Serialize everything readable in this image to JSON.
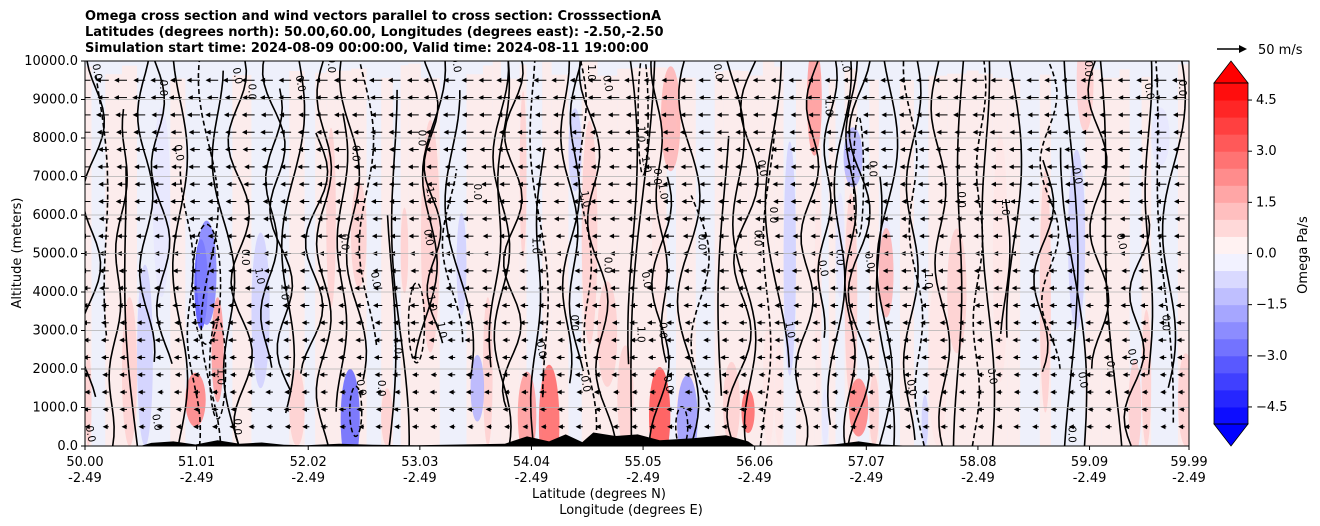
{
  "chart_data": {
    "type": "heatmap",
    "title_lines": [
      "Omega cross section and wind vectors parallel to cross section: CrosssectionA",
      "Latitudes (degrees north): 50.00,60.00, Longitudes (degrees east): -2.50,-2.50",
      "Simulation start time: 2024-08-09 00:00:00, Valid time: 2024-08-11 19:00:00"
    ],
    "ylabel": "Altitude (meters)",
    "xlabel_lat": "Latitude (degrees N)",
    "xlabel_lon": "Longitude (degrees E)",
    "ylim": [
      0,
      10000
    ],
    "xlim": [
      50.0,
      59.99
    ],
    "y_ticks": [
      0,
      1000,
      2000,
      3000,
      4000,
      5000,
      6000,
      7000,
      8000,
      9000,
      10000
    ],
    "y_tick_labels": [
      "0.0",
      "1000.0",
      "2000.0",
      "3000.0",
      "4000.0",
      "5000.0",
      "6000.0",
      "7000.0",
      "8000.0",
      "9000.0",
      "10000.0"
    ],
    "x_ticks": [
      {
        "lat": 50.0,
        "lat_label": "50.00",
        "lon_label": "-2.49"
      },
      {
        "lat": 51.01,
        "lat_label": "51.01",
        "lon_label": "-2.49"
      },
      {
        "lat": 52.02,
        "lat_label": "52.02",
        "lon_label": "-2.49"
      },
      {
        "lat": 53.03,
        "lat_label": "53.03",
        "lon_label": "-2.49"
      },
      {
        "lat": 54.04,
        "lat_label": "54.04",
        "lon_label": "-2.49"
      },
      {
        "lat": 55.05,
        "lat_label": "55.05",
        "lon_label": "-2.49"
      },
      {
        "lat": 56.06,
        "lat_label": "56.06",
        "lon_label": "-2.49"
      },
      {
        "lat": 57.07,
        "lat_label": "57.07",
        "lon_label": "-2.49"
      },
      {
        "lat": 58.08,
        "lat_label": "58.08",
        "lon_label": "-2.49"
      },
      {
        "lat": 59.09,
        "lat_label": "59.09",
        "lon_label": "-2.49"
      },
      {
        "lat": 59.99,
        "lat_label": "59.99",
        "lon_label": "-2.49"
      }
    ],
    "grid": "horizontal",
    "colorbar": {
      "label": "Omega Pa/s",
      "range": [
        -5,
        5
      ],
      "ticks": [
        -4.5,
        -3.0,
        -1.5,
        0.0,
        1.5,
        3.0,
        4.5
      ],
      "tick_labels": [
        "−4.5",
        "−3.0",
        "−1.5",
        "0.0",
        "1.5",
        "3.0",
        "4.5"
      ],
      "extend": "both",
      "cmap": "bwr"
    },
    "contour_levels": [
      -1.0,
      0.0,
      1.0
    ],
    "contour_labels": [
      {
        "lat": 50.08,
        "alt": 9700,
        "text": "0.0"
      },
      {
        "lat": 50.68,
        "alt": 9300,
        "text": "0.0"
      },
      {
        "lat": 51.35,
        "alt": 9600,
        "text": "0.0"
      },
      {
        "lat": 51.48,
        "alt": 9200,
        "text": "0.0"
      },
      {
        "lat": 51.92,
        "alt": 9400,
        "text": "0.0"
      },
      {
        "lat": 52.2,
        "alt": 9900,
        "text": "0.0"
      },
      {
        "lat": 50.82,
        "alt": 7600,
        "text": "0.0"
      },
      {
        "lat": 52.42,
        "alt": 7600,
        "text": "0.0"
      },
      {
        "lat": 53.33,
        "alt": 9900,
        "text": "0.0"
      },
      {
        "lat": 53.02,
        "alt": 8000,
        "text": "0.0"
      },
      {
        "lat": 53.1,
        "alt": 6500,
        "text": "1.0"
      },
      {
        "lat": 53.52,
        "alt": 6600,
        "text": "0.0"
      },
      {
        "lat": 53.08,
        "alt": 5400,
        "text": "0.0"
      },
      {
        "lat": 52.32,
        "alt": 5300,
        "text": "0.0"
      },
      {
        "lat": 52.6,
        "alt": 4300,
        "text": "0.0"
      },
      {
        "lat": 51.42,
        "alt": 4900,
        "text": "0.0"
      },
      {
        "lat": 51.55,
        "alt": 4400,
        "text": "1.0"
      },
      {
        "lat": 51.78,
        "alt": 4000,
        "text": "1.0"
      },
      {
        "lat": 53.11,
        "alt": 3700,
        "text": "1.0"
      },
      {
        "lat": 52.8,
        "alt": 2600,
        "text": "1.0"
      },
      {
        "lat": 53.2,
        "alt": 3000,
        "text": "1.0"
      },
      {
        "lat": 52.65,
        "alt": 1500,
        "text": "0.0"
      },
      {
        "lat": 52.47,
        "alt": 1500,
        "text": "0.0"
      },
      {
        "lat": 51.2,
        "alt": 1800,
        "text": "1.0"
      },
      {
        "lat": 50.62,
        "alt": 600,
        "text": "0.0"
      },
      {
        "lat": 51.35,
        "alt": 500,
        "text": "0.0"
      },
      {
        "lat": 50.02,
        "alt": 300,
        "text": "0.0"
      },
      {
        "lat": 54.05,
        "alt": 5200,
        "text": "1.0"
      },
      {
        "lat": 54.1,
        "alt": 2500,
        "text": "0.0"
      },
      {
        "lat": 54.4,
        "alt": 3200,
        "text": "0.0"
      },
      {
        "lat": 54.5,
        "alt": 1600,
        "text": "0.0"
      },
      {
        "lat": 54.7,
        "alt": 4700,
        "text": "0.0"
      },
      {
        "lat": 54.5,
        "alt": 6400,
        "text": "1.0"
      },
      {
        "lat": 54.55,
        "alt": 9700,
        "text": "1.0"
      },
      {
        "lat": 54.7,
        "alt": 9400,
        "text": "0.0"
      },
      {
        "lat": 55.0,
        "alt": 8100,
        "text": "1.0"
      },
      {
        "lat": 55.05,
        "alt": 7300,
        "text": "1.0"
      },
      {
        "lat": 55.15,
        "alt": 7000,
        "text": "0.0"
      },
      {
        "lat": 55.05,
        "alt": 4300,
        "text": "0.0"
      },
      {
        "lat": 55.0,
        "alt": 2900,
        "text": "1.0"
      },
      {
        "lat": 55.25,
        "alt": 1600,
        "text": "0.0"
      },
      {
        "lat": 55.2,
        "alt": 3000,
        "text": "0.0"
      },
      {
        "lat": 55.2,
        "alt": 6600,
        "text": "1.0"
      },
      {
        "lat": 55.55,
        "alt": 5300,
        "text": "0.0"
      },
      {
        "lat": 55.7,
        "alt": 9700,
        "text": "0.0"
      },
      {
        "lat": 56.06,
        "alt": 5400,
        "text": "0.0"
      },
      {
        "lat": 56.1,
        "alt": 7200,
        "text": "0.0"
      },
      {
        "lat": 56.2,
        "alt": 6000,
        "text": "0.0"
      },
      {
        "lat": 56.35,
        "alt": 3000,
        "text": "1.0"
      },
      {
        "lat": 56.7,
        "alt": 8800,
        "text": "1.0"
      },
      {
        "lat": 56.65,
        "alt": 4600,
        "text": "0.0"
      },
      {
        "lat": 56.8,
        "alt": 4900,
        "text": "0.0"
      },
      {
        "lat": 56.85,
        "alt": 9900,
        "text": "1.0"
      },
      {
        "lat": 57.1,
        "alt": 7200,
        "text": "0.0"
      },
      {
        "lat": 57.07,
        "alt": 4800,
        "text": "0.0"
      },
      {
        "lat": 57.6,
        "alt": 4300,
        "text": "1.0"
      },
      {
        "lat": 57.45,
        "alt": 1500,
        "text": "0.0"
      },
      {
        "lat": 57.9,
        "alt": 6400,
        "text": "0.0"
      },
      {
        "lat": 58.18,
        "alt": 1800,
        "text": "0.0"
      },
      {
        "lat": 58.3,
        "alt": 6200,
        "text": "1.0"
      },
      {
        "lat": 58.95,
        "alt": 7000,
        "text": "0.0"
      },
      {
        "lat": 59.05,
        "alt": 9800,
        "text": "0.0"
      },
      {
        "lat": 59.0,
        "alt": 1700,
        "text": "0.0"
      },
      {
        "lat": 59.25,
        "alt": 2000,
        "text": "0.0"
      },
      {
        "lat": 59.45,
        "alt": 2300,
        "text": "0.0"
      },
      {
        "lat": 58.9,
        "alt": 300,
        "text": "0.0"
      },
      {
        "lat": 59.6,
        "alt": 9200,
        "text": "0.0"
      },
      {
        "lat": 59.9,
        "alt": 9300,
        "text": "0.0"
      },
      {
        "lat": 59.35,
        "alt": 5300,
        "text": "0.0"
      },
      {
        "lat": 59.75,
        "alt": 3200,
        "text": "0.0"
      }
    ],
    "vector_key": {
      "label": "50 m/s",
      "speed": 50,
      "direction": "right"
    },
    "wind_vectors": "arrows parallel to cross section, predominantly pointing left (southward) in upper levels, small near surface"
  }
}
